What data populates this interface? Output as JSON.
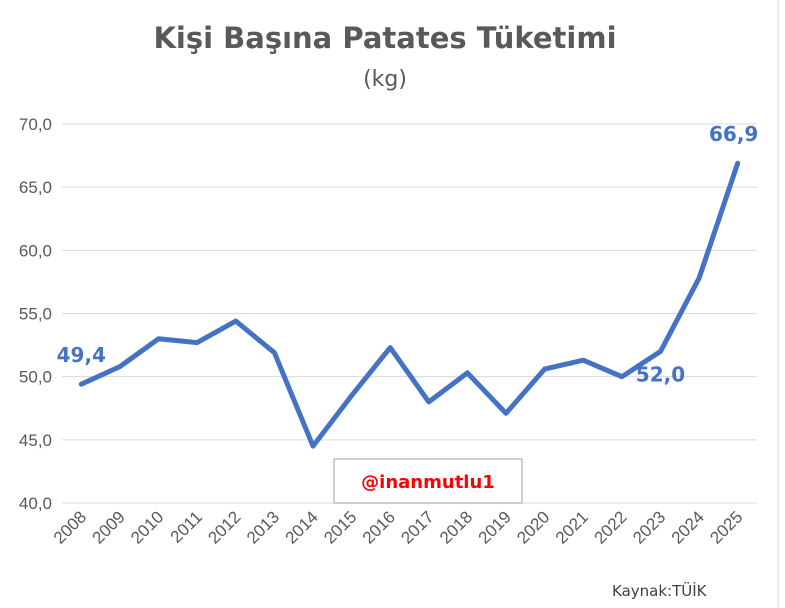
{
  "chart_data": {
    "type": "line",
    "title": "Kişi Başına Patates Tüketimi",
    "subtitle": "(kg)",
    "xlabel": "",
    "ylabel": "",
    "categories": [
      "2008",
      "2009",
      "2010",
      "2011",
      "2012",
      "2013",
      "2014",
      "2015",
      "2016",
      "2017",
      "2018",
      "2019",
      "2020",
      "2021",
      "2022",
      "2023",
      "2024",
      "2025"
    ],
    "series": [
      {
        "values": [
          49.4,
          50.8,
          53.0,
          52.7,
          54.4,
          51.9,
          44.5,
          48.5,
          52.3,
          48.0,
          50.3,
          47.1,
          50.6,
          51.3,
          50.0,
          52.0,
          57.8,
          66.9
        ]
      }
    ],
    "ylim": [
      40,
      70
    ],
    "yticks": [
      "40,0",
      "45,0",
      "50,0",
      "55,0",
      "60,0",
      "65,0",
      "70,0"
    ],
    "annotations": [
      {
        "category": "2008",
        "label": "49,4"
      },
      {
        "category": "2023",
        "label": "52,0"
      },
      {
        "category": "2025",
        "label": "66,9"
      }
    ],
    "grid": true,
    "line_color": "#4472C4"
  },
  "watermark": "@inanmutlu1",
  "source": "Kaynak:TÜİK"
}
